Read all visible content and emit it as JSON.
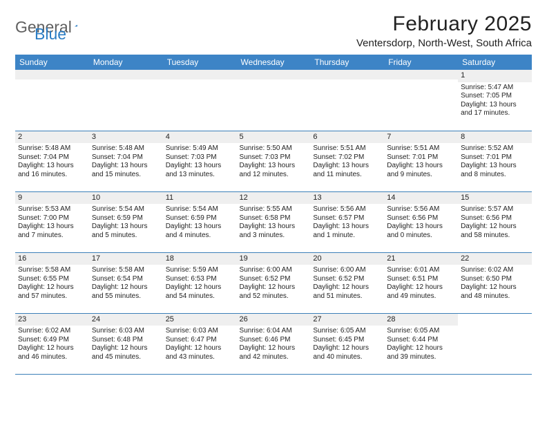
{
  "logo": {
    "text1": "General",
    "text2": "Blue",
    "color1": "#5f5f5f",
    "color2": "#2b7dc4"
  },
  "title": "February 2025",
  "location": "Ventersdorp, North-West, South Africa",
  "colors": {
    "header_bg": "#3d84c6",
    "header_text": "#ffffff",
    "row_divider": "#3b7fb8",
    "numbar_bg": "#efefef",
    "body_text": "#222222"
  },
  "table": {
    "columns": [
      "Sunday",
      "Monday",
      "Tuesday",
      "Wednesday",
      "Thursday",
      "Friday",
      "Saturday"
    ],
    "weeks": [
      [
        null,
        null,
        null,
        null,
        null,
        null,
        {
          "n": "1",
          "sunrise": "5:47 AM",
          "sunset": "7:05 PM",
          "daylight": "13 hours and 17 minutes."
        }
      ],
      [
        {
          "n": "2",
          "sunrise": "5:48 AM",
          "sunset": "7:04 PM",
          "daylight": "13 hours and 16 minutes."
        },
        {
          "n": "3",
          "sunrise": "5:48 AM",
          "sunset": "7:04 PM",
          "daylight": "13 hours and 15 minutes."
        },
        {
          "n": "4",
          "sunrise": "5:49 AM",
          "sunset": "7:03 PM",
          "daylight": "13 hours and 13 minutes."
        },
        {
          "n": "5",
          "sunrise": "5:50 AM",
          "sunset": "7:03 PM",
          "daylight": "13 hours and 12 minutes."
        },
        {
          "n": "6",
          "sunrise": "5:51 AM",
          "sunset": "7:02 PM",
          "daylight": "13 hours and 11 minutes."
        },
        {
          "n": "7",
          "sunrise": "5:51 AM",
          "sunset": "7:01 PM",
          "daylight": "13 hours and 9 minutes."
        },
        {
          "n": "8",
          "sunrise": "5:52 AM",
          "sunset": "7:01 PM",
          "daylight": "13 hours and 8 minutes."
        }
      ],
      [
        {
          "n": "9",
          "sunrise": "5:53 AM",
          "sunset": "7:00 PM",
          "daylight": "13 hours and 7 minutes."
        },
        {
          "n": "10",
          "sunrise": "5:54 AM",
          "sunset": "6:59 PM",
          "daylight": "13 hours and 5 minutes."
        },
        {
          "n": "11",
          "sunrise": "5:54 AM",
          "sunset": "6:59 PM",
          "daylight": "13 hours and 4 minutes."
        },
        {
          "n": "12",
          "sunrise": "5:55 AM",
          "sunset": "6:58 PM",
          "daylight": "13 hours and 3 minutes."
        },
        {
          "n": "13",
          "sunrise": "5:56 AM",
          "sunset": "6:57 PM",
          "daylight": "13 hours and 1 minute."
        },
        {
          "n": "14",
          "sunrise": "5:56 AM",
          "sunset": "6:56 PM",
          "daylight": "13 hours and 0 minutes."
        },
        {
          "n": "15",
          "sunrise": "5:57 AM",
          "sunset": "6:56 PM",
          "daylight": "12 hours and 58 minutes."
        }
      ],
      [
        {
          "n": "16",
          "sunrise": "5:58 AM",
          "sunset": "6:55 PM",
          "daylight": "12 hours and 57 minutes."
        },
        {
          "n": "17",
          "sunrise": "5:58 AM",
          "sunset": "6:54 PM",
          "daylight": "12 hours and 55 minutes."
        },
        {
          "n": "18",
          "sunrise": "5:59 AM",
          "sunset": "6:53 PM",
          "daylight": "12 hours and 54 minutes."
        },
        {
          "n": "19",
          "sunrise": "6:00 AM",
          "sunset": "6:52 PM",
          "daylight": "12 hours and 52 minutes."
        },
        {
          "n": "20",
          "sunrise": "6:00 AM",
          "sunset": "6:52 PM",
          "daylight": "12 hours and 51 minutes."
        },
        {
          "n": "21",
          "sunrise": "6:01 AM",
          "sunset": "6:51 PM",
          "daylight": "12 hours and 49 minutes."
        },
        {
          "n": "22",
          "sunrise": "6:02 AM",
          "sunset": "6:50 PM",
          "daylight": "12 hours and 48 minutes."
        }
      ],
      [
        {
          "n": "23",
          "sunrise": "6:02 AM",
          "sunset": "6:49 PM",
          "daylight": "12 hours and 46 minutes."
        },
        {
          "n": "24",
          "sunrise": "6:03 AM",
          "sunset": "6:48 PM",
          "daylight": "12 hours and 45 minutes."
        },
        {
          "n": "25",
          "sunrise": "6:03 AM",
          "sunset": "6:47 PM",
          "daylight": "12 hours and 43 minutes."
        },
        {
          "n": "26",
          "sunrise": "6:04 AM",
          "sunset": "6:46 PM",
          "daylight": "12 hours and 42 minutes."
        },
        {
          "n": "27",
          "sunrise": "6:05 AM",
          "sunset": "6:45 PM",
          "daylight": "12 hours and 40 minutes."
        },
        {
          "n": "28",
          "sunrise": "6:05 AM",
          "sunset": "6:44 PM",
          "daylight": "12 hours and 39 minutes."
        },
        null
      ]
    ],
    "labels": {
      "sunrise": "Sunrise:",
      "sunset": "Sunset:",
      "daylight": "Daylight:"
    }
  }
}
